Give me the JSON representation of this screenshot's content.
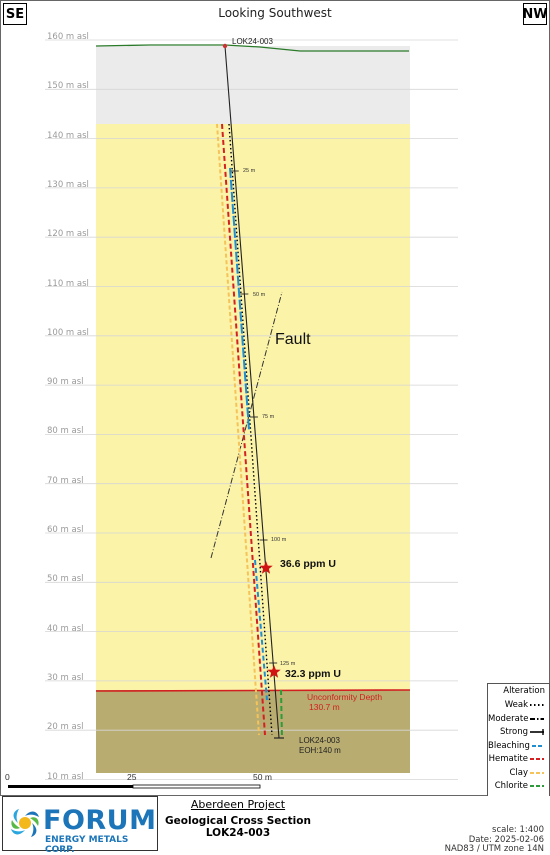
{
  "header": {
    "title": "Looking Southwest",
    "left_direction": "SE",
    "right_direction": "NW"
  },
  "elevation_axis": {
    "unit_suffix": "m asl",
    "ticks": [
      160,
      150,
      140,
      130,
      120,
      110,
      100,
      90,
      80,
      70,
      60,
      50,
      40,
      30,
      20,
      10
    ]
  },
  "scale_bar": {
    "labels": [
      "0",
      "25",
      "50 m"
    ]
  },
  "drillhole": {
    "name": "LOK24-003",
    "collar_label": "LOK24-003",
    "end_label_name": "LOK24-003",
    "end_label_eoh": "EOH:140  m",
    "depth_ticks": [
      "25 m",
      "50 m",
      "75 m",
      "100 m",
      "125 m"
    ]
  },
  "fault": {
    "label": "Fault"
  },
  "assays": [
    {
      "value": "36.6 ppm U"
    },
    {
      "value": "32.3 ppm U"
    }
  ],
  "unconformity": {
    "label": "Unconformity Depth",
    "depth": "130.7 m",
    "color": "#d22020"
  },
  "units": {
    "overburden_color": "#ebebeb",
    "sandstone_color": "#fbf3a8",
    "basement_color": "#b8ac70"
  },
  "legend": {
    "title": "Alteration",
    "items": [
      {
        "label": "Weak",
        "style": "dotted",
        "color": "#000000"
      },
      {
        "label": "Moderate",
        "style": "dashdot",
        "color": "#000000"
      },
      {
        "label": "Strong",
        "style": "solid",
        "color": "#000000"
      },
      {
        "label": "Bleaching",
        "style": "dash",
        "color": "#1f8fd1"
      },
      {
        "label": "Hematite",
        "style": "dash",
        "color": "#d42020"
      },
      {
        "label": "Clay",
        "style": "dash",
        "color": "#f6c35a"
      },
      {
        "label": "Chlorite",
        "style": "dash",
        "color": "#2e9b3a"
      }
    ]
  },
  "footer": {
    "logo_word": "FORUM",
    "logo_sub": "ENERGY METALS CORP.",
    "project": "Aberdeen Project",
    "section_title": "Geological Cross Section",
    "section_hole": "LOK24-003",
    "scale": "scale: 1:400",
    "date": "Date: 2025-02-06",
    "datum": "NAD83 / UTM zone 14N"
  }
}
